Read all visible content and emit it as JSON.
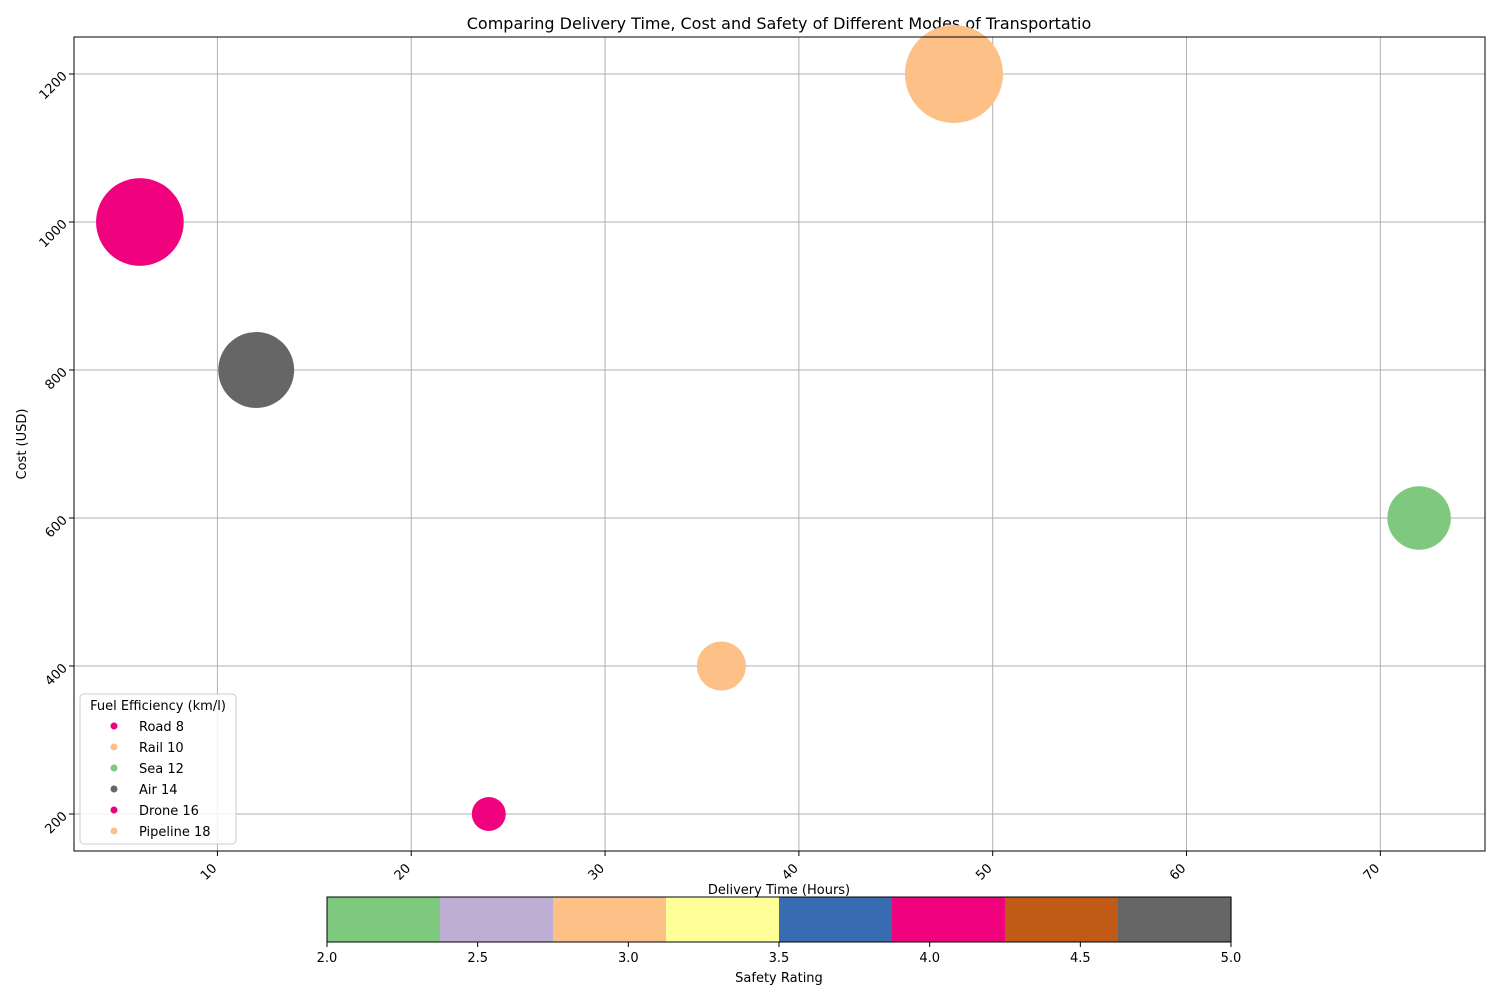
{
  "chart_data": {
    "type": "scatter",
    "title": "Comparing Delivery Time, Cost and Safety of Different Modes of Transportatio",
    "xlabel": "Delivery Time (Hours)",
    "ylabel": "Cost (USD)",
    "xlim": [
      2.6,
      75.4
    ],
    "ylim": [
      150,
      1250
    ],
    "xticks": [
      "10",
      "20",
      "30",
      "40",
      "50",
      "60",
      "70"
    ],
    "yticks": [
      "200",
      "400",
      "600",
      "800",
      "1000",
      "1200"
    ],
    "grid": true,
    "points": [
      {
        "x": 24,
        "y": 200,
        "safety": 4.0,
        "color": "#f0027f",
        "size_rel": 0.12
      },
      {
        "x": 36,
        "y": 400,
        "safety": 3.0,
        "color": "#fdc086",
        "size_rel": 0.25
      },
      {
        "x": 72,
        "y": 600,
        "safety": 2.0,
        "color": "#7fc97f",
        "size_rel": 0.42
      },
      {
        "x": 12,
        "y": 800,
        "safety": 5.0,
        "color": "#666666",
        "size_rel": 0.6
      },
      {
        "x": 6,
        "y": 1000,
        "safety": 4.0,
        "color": "#f0027f",
        "size_rel": 0.8
      },
      {
        "x": 48,
        "y": 1200,
        "safety": 3.0,
        "color": "#fdc086",
        "size_rel": 1.0
      }
    ],
    "legend": {
      "title": "Fuel Efficiency (km/l)",
      "placement": "lower-left",
      "entries": [
        {
          "label": "Road 8",
          "color": "#f0027f"
        },
        {
          "label": "Rail 10",
          "color": "#fdc086"
        },
        {
          "label": "Sea 12",
          "color": "#7fc97f"
        },
        {
          "label": "Air 14",
          "color": "#666666"
        },
        {
          "label": "Drone 16",
          "color": "#f0027f"
        },
        {
          "label": "Pipeline 18",
          "color": "#fdc086"
        }
      ]
    },
    "colorbar": {
      "label": "Safety Rating",
      "range": [
        2.0,
        5.0
      ],
      "ticks": [
        "2.0",
        "2.5",
        "3.0",
        "3.5",
        "4.0",
        "4.5",
        "5.0"
      ],
      "colors": [
        "#7fc97f",
        "#beaed4",
        "#fdc086",
        "#ffff99",
        "#386cb0",
        "#f0027f",
        "#bf5b17",
        "#666666"
      ]
    }
  }
}
